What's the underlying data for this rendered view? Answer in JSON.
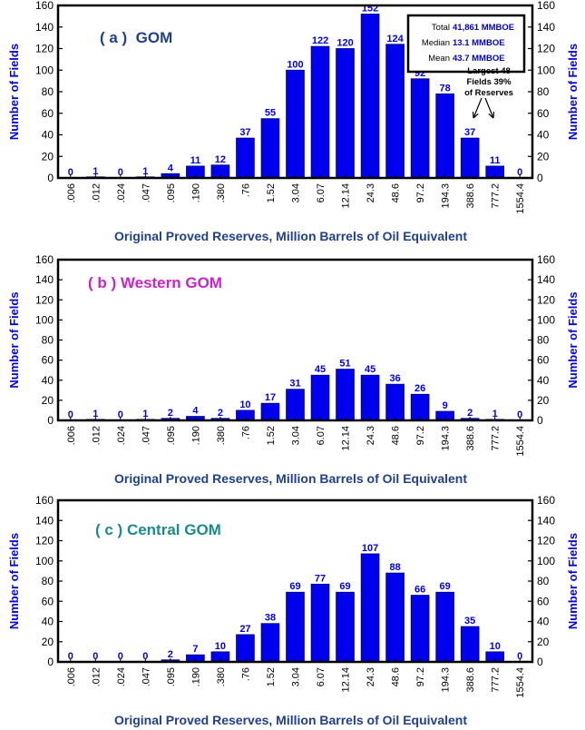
{
  "colors": {
    "bar": "#0000ee",
    "bar_outline": "#000066",
    "axis_title": "#1f3f8f",
    "value_label": "#0000ee"
  },
  "chart_data": [
    {
      "type": "bar",
      "title": "( a )  GOM",
      "title_color": "#1f3f8f",
      "xlabel": "Original Proved Reserves, Million Barrels of Oil Equivalent",
      "ylabel": "Number of Fields",
      "ylabel_right": "Number of Fields",
      "ylim": [
        0,
        160
      ],
      "yticks": [
        "0",
        "20",
        "40",
        "60",
        "80",
        "100",
        "120",
        "140",
        "160"
      ],
      "categories": [
        ".006",
        ".012",
        ".024",
        ".047",
        ".095",
        ".190",
        ".380",
        ".76",
        "1.52",
        "3.04",
        "6.07",
        "12.14",
        "24.3",
        "48.6",
        "97.2",
        "194.3",
        "388.6",
        "777.2",
        "1554.4"
      ],
      "values": [
        0,
        1,
        0,
        1,
        4,
        11,
        12,
        37,
        55,
        100,
        122,
        120,
        152,
        124,
        92,
        78,
        37,
        11,
        0
      ],
      "stats": [
        {
          "label": "Total",
          "value": "41,861 MMBOE"
        },
        {
          "label": "Median",
          "value": "13.1 MMBOE"
        },
        {
          "label": "Mean",
          "value": "43.7 MMBOE"
        }
      ],
      "annotation": [
        "Largest 48",
        "Fields  39%",
        "of Reserves"
      ]
    },
    {
      "type": "bar",
      "title": "( b ) Western GOM",
      "title_color": "#cc22cc",
      "xlabel": "Original Proved Reserves, Million Barrels of Oil Equivalent",
      "ylabel": "Number of Fields",
      "ylabel_right": "Number of Fields",
      "ylim": [
        0,
        160
      ],
      "yticks": [
        "0",
        "20",
        "40",
        "60",
        "80",
        "100",
        "120",
        "140",
        "160"
      ],
      "categories": [
        ".006",
        ".012",
        ".024",
        ".047",
        ".095",
        ".190",
        ".380",
        ".76",
        "1.52",
        "3.04",
        "6.07",
        "12.14",
        "24.3",
        "48.6",
        "97.2",
        "194.3",
        "388.6",
        "777.2",
        "1554.4"
      ],
      "values": [
        0,
        1,
        0,
        1,
        2,
        4,
        2,
        10,
        17,
        31,
        45,
        51,
        45,
        36,
        26,
        9,
        2,
        1,
        0
      ]
    },
    {
      "type": "bar",
      "title": "( c ) Central GOM",
      "title_color": "#1a8a8a",
      "xlabel": "Original Proved Reserves, Million Barrels of Oil Equivalent",
      "ylabel": "Number of Fields",
      "ylabel_right": "Number of Fields",
      "ylim": [
        0,
        160
      ],
      "yticks": [
        "0",
        "20",
        "40",
        "60",
        "80",
        "100",
        "120",
        "140",
        "160"
      ],
      "categories": [
        ".006",
        ".012",
        ".024",
        ".047",
        ".095",
        ".190",
        ".380",
        ".76",
        "1.52",
        "3.04",
        "6.07",
        "12.14",
        "24.3",
        "48.6",
        "97.2",
        "194.3",
        "388.6",
        "777.2",
        "1554.4"
      ],
      "values": [
        0,
        0,
        0,
        0,
        2,
        7,
        10,
        27,
        38,
        69,
        77,
        69,
        107,
        88,
        66,
        69,
        35,
        10,
        0
      ]
    }
  ]
}
